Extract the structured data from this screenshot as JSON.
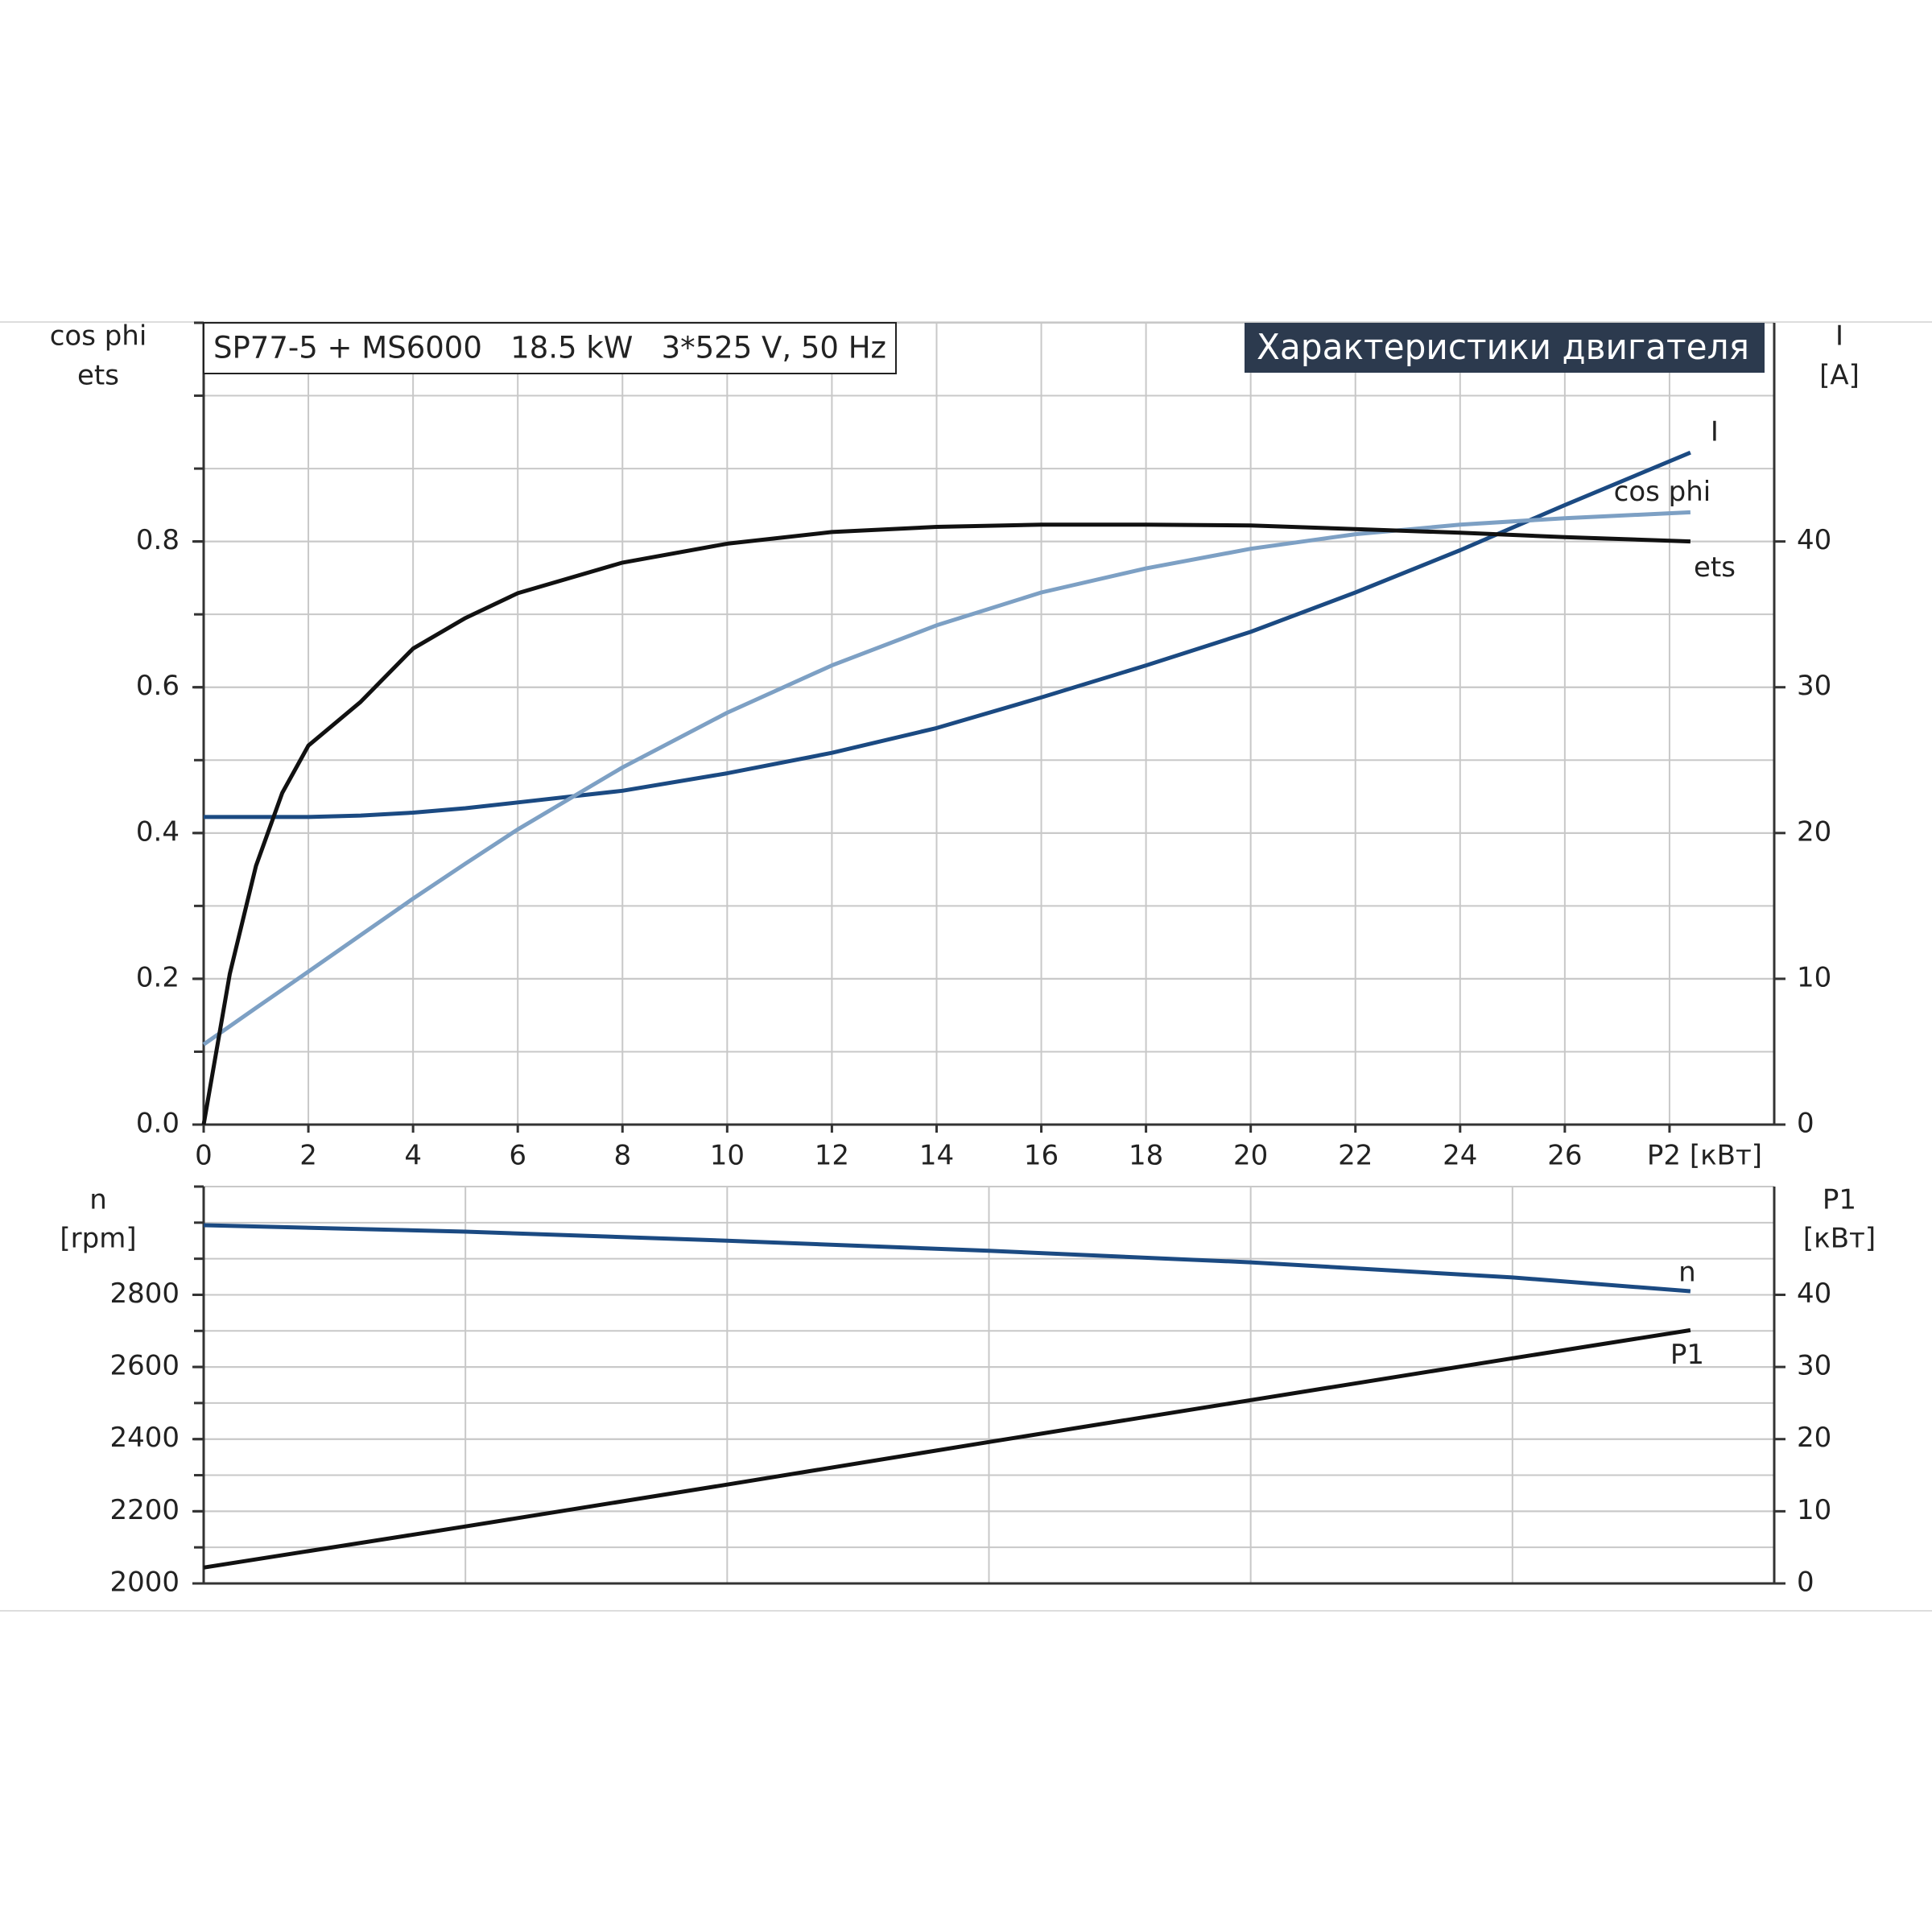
{
  "chart_data": [
    {
      "type": "line",
      "title": "SP77-5 + MS6000   18.5 kW   3*525 V, 50 Hz",
      "subtitle": "Характеристики двигателя",
      "ylabel": [
        "cos phi",
        "ets"
      ],
      "y2label": [
        "I",
        "[A]"
      ],
      "x": [
        0,
        0.5,
        1,
        1.5,
        2,
        3,
        4,
        5,
        6,
        8,
        10,
        12,
        14,
        16,
        18,
        20,
        22,
        24,
        26,
        28.4
      ],
      "xlim": [
        0,
        30
      ],
      "xticks": [
        0,
        2,
        4,
        6,
        8,
        10,
        12,
        14,
        16,
        18,
        20,
        22,
        24,
        26,
        {
          "value": 28,
          "label": "P2 [кВт]"
        }
      ],
      "show_xtick_labels": true,
      "ylim": [
        0,
        1.1
      ],
      "yticks": [
        {
          "value": 0,
          "label": "0.0"
        },
        0.2,
        0.4,
        0.6,
        0.8
      ],
      "y2lim": [
        0,
        55
      ],
      "y2ticks": [
        0,
        10,
        20,
        30,
        40
      ],
      "grid": true,
      "series": [
        {
          "name": "I",
          "color": "#1b4a82",
          "axis": "y2",
          "values": [
            21.1,
            21.1,
            21.1,
            21.1,
            21.1,
            21.2,
            21.4,
            21.7,
            22.1,
            22.9,
            24.1,
            25.5,
            27.2,
            29.3,
            31.5,
            33.8,
            36.5,
            39.4,
            42.5,
            46.1
          ]
        },
        {
          "name": "cos phi",
          "color": "#7da0c4",
          "values": [
            0.11,
            0.135,
            0.16,
            0.185,
            0.21,
            0.26,
            0.31,
            0.358,
            0.405,
            0.49,
            0.565,
            0.63,
            0.685,
            0.73,
            0.763,
            0.79,
            0.81,
            0.823,
            0.832,
            0.84
          ]
        },
        {
          "name": "ets",
          "color": "#111111",
          "values": [
            0,
            0.207,
            0.355,
            0.455,
            0.52,
            0.58,
            0.653,
            0.695,
            0.729,
            0.771,
            0.797,
            0.813,
            0.82,
            0.823,
            0.823,
            0.822,
            0.817,
            0.812,
            0.806,
            0.8
          ]
        }
      ]
    },
    {
      "type": "line",
      "ylabel": [
        "n",
        "[rpm]"
      ],
      "y2label": [
        "P1",
        "[кВт]"
      ],
      "x": [
        0,
        5,
        10,
        15,
        20,
        25,
        28.4
      ],
      "xlim": [
        0,
        30
      ],
      "xticks": [
        0,
        5,
        10,
        15,
        20,
        25
      ],
      "show_xtick_labels": false,
      "ylim": [
        2000,
        3100
      ],
      "yticks": [
        2000,
        2200,
        2400,
        2600,
        2800
      ],
      "y2lim": [
        0,
        55
      ],
      "y2ticks": [
        0,
        10,
        20,
        30,
        40
      ],
      "grid": true,
      "series": [
        {
          "name": "n",
          "color": "#1b4a82",
          "values": [
            2993,
            2975,
            2950,
            2922,
            2890,
            2848,
            2810
          ]
        },
        {
          "name": "P1",
          "color": "#111111",
          "axis": "y2",
          "values": [
            2.2,
            7.9,
            13.7,
            19.6,
            25.4,
            31.2,
            35.1
          ]
        }
      ]
    }
  ]
}
